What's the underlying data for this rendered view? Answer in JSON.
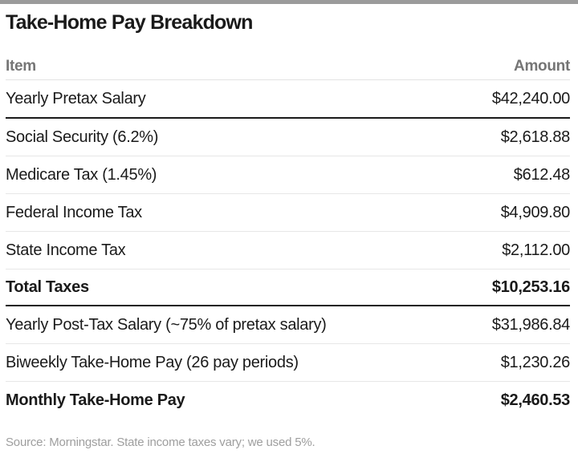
{
  "page": {
    "title": "Take-Home Pay Breakdown",
    "source_note": "Source: Morningstar. State income taxes vary; we used 5%."
  },
  "table": {
    "columns": {
      "item": "Item",
      "amount": "Amount"
    },
    "rows": [
      {
        "item": "Yearly Pretax Salary",
        "amount": "$42,240.00"
      },
      {
        "item": "Social Security (6.2%)",
        "amount": "$2,618.88"
      },
      {
        "item": "Medicare Tax (1.45%)",
        "amount": "$612.48"
      },
      {
        "item": "Federal Income Tax",
        "amount": "$4,909.80"
      },
      {
        "item": "State Income Tax",
        "amount": "$2,112.00"
      },
      {
        "item": "Total Taxes",
        "amount": "$10,253.16"
      },
      {
        "item": "Yearly Post-Tax Salary (~75% of pretax salary)",
        "amount": "$31,986.84"
      },
      {
        "item": "Biweekly Take-Home Pay (26 pay periods)",
        "amount": "$1,230.26"
      },
      {
        "item": "Monthly Take-Home Pay",
        "amount": "$2,460.53"
      }
    ]
  },
  "colors": {
    "top_bar": "#9b9b9b",
    "text_dark": "#1a1a1a",
    "header_gray": "#757575",
    "light_rule": "#e7e7e7",
    "dark_rule": "#1a1a1a",
    "source_gray": "#9e9e9e"
  },
  "chart_data": {
    "type": "table",
    "title": "Take-Home Pay Breakdown",
    "columns": [
      "Item",
      "Amount"
    ],
    "rows": [
      [
        "Yearly Pretax Salary",
        42240.0
      ],
      [
        "Social Security (6.2%)",
        2618.88
      ],
      [
        "Medicare Tax (1.45%)",
        612.48
      ],
      [
        "Federal Income Tax",
        4909.8
      ],
      [
        "State Income Tax",
        2112.0
      ],
      [
        "Total Taxes",
        10253.16
      ],
      [
        "Yearly Post-Tax Salary (~75% of pretax salary)",
        31986.84
      ],
      [
        "Biweekly Take-Home Pay (26 pay periods)",
        1230.26
      ],
      [
        "Monthly Take-Home Pay",
        2460.53
      ]
    ],
    "emphasized_rows": [
      "Total Taxes",
      "Monthly Take-Home Pay"
    ],
    "source": "Source: Morningstar. State income taxes vary; we used 5%."
  }
}
